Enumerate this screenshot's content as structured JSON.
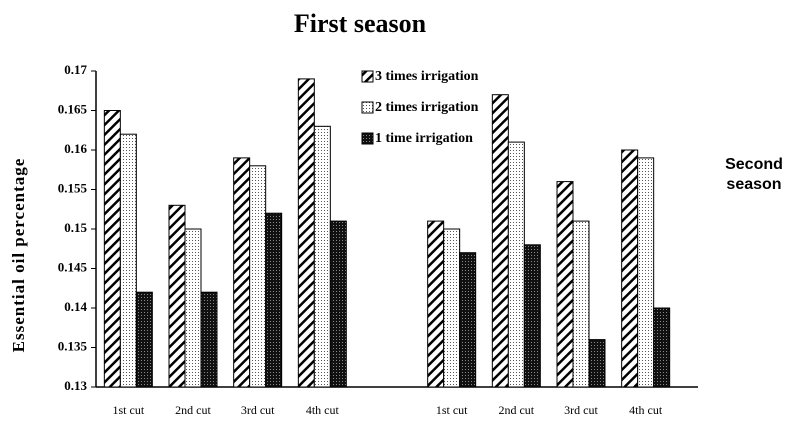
{
  "chart_data": {
    "type": "bar",
    "title": "First season",
    "annotation": "Second season",
    "ylabel": "Essential oil percentage",
    "categories": [
      "1st cut",
      "2nd cut",
      "3rd cut",
      "4th cut",
      null,
      "1st cut",
      "2nd cut",
      "3rd cut",
      "4th cut"
    ],
    "series": [
      {
        "name": "3 times irrigation",
        "color": "#000000",
        "pattern": "hatch",
        "values": [
          0.165,
          0.153,
          0.159,
          0.169,
          null,
          0.151,
          0.167,
          0.156,
          0.16
        ]
      },
      {
        "name": "2 times irrigation",
        "color": "#000000",
        "pattern": "dots",
        "values": [
          0.162,
          0.15,
          0.158,
          0.163,
          null,
          0.15,
          0.161,
          0.151,
          0.159
        ]
      },
      {
        "name": "1 time irrigation",
        "color": "#000000",
        "pattern": "dark",
        "values": [
          0.142,
          0.142,
          0.152,
          0.151,
          null,
          0.147,
          0.148,
          0.136,
          0.14
        ]
      }
    ],
    "ylim": [
      0.13,
      0.17
    ],
    "yticks": [
      0.13,
      0.135,
      0.14,
      0.145,
      0.15,
      0.155,
      0.16,
      0.165,
      0.17
    ],
    "grid": false
  }
}
